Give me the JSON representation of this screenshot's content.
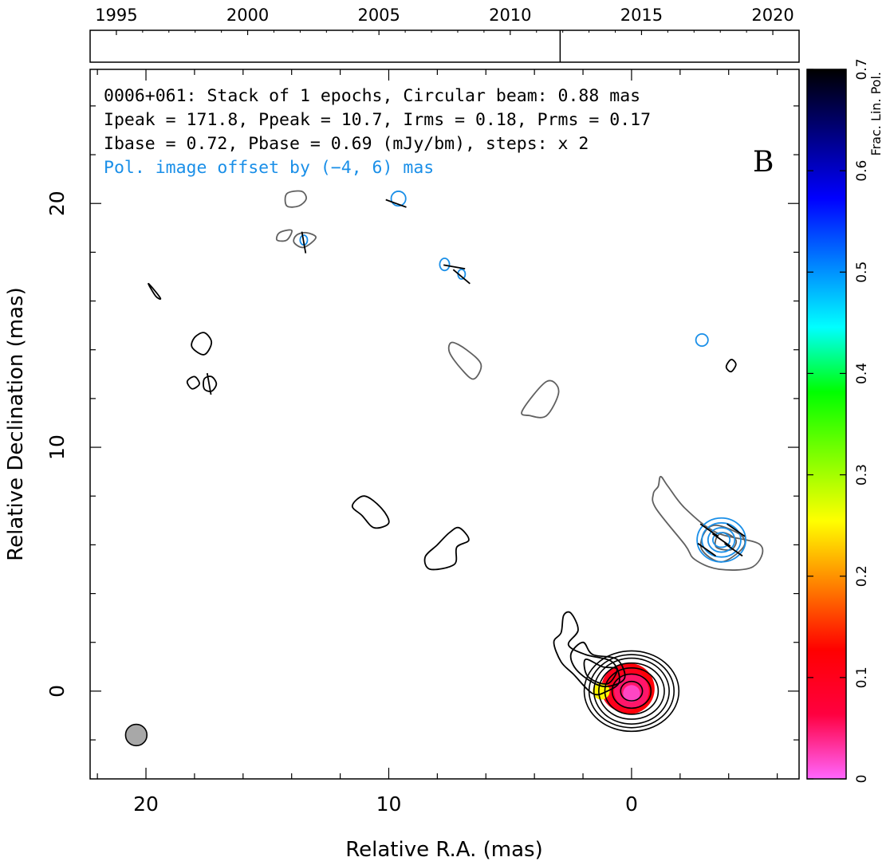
{
  "chart_data": {
    "type": "contour",
    "info_lines": [
      "0006+061: Stack of 1 epochs, Circular beam: 0.88 mas",
      "Ipeak = 171.8, Ppeak = 10.7, Irms = 0.18, Prms = 0.17",
      "Ibase = 0.72, Pbase = 0.69 (mJy/bm), steps: x 2"
    ],
    "offset_note": "Pol. image offset by (−4, 6) mas",
    "panel_letter": "B",
    "xlabel": "Relative R.A. (mas)",
    "ylabel": "Relative Declination (mas)",
    "xlim": [
      22.3,
      -6.9
    ],
    "ylim": [
      -3.6,
      25.5
    ],
    "x_ticks": [
      "20",
      "10",
      "0"
    ],
    "x_tick_values": [
      20,
      10,
      0
    ],
    "y_ticks": [
      "0",
      "10",
      "20"
    ],
    "y_tick_values": [
      0,
      10,
      20
    ],
    "x_minor_step": 2,
    "y_minor_step": 2,
    "timeline": {
      "range": [
        1994.0,
        2021.0
      ],
      "ticks": [
        "1995",
        "2000",
        "2005",
        "2010",
        "2015",
        "2020"
      ],
      "tick_values": [
        1995,
        2000,
        2005,
        2010,
        2015,
        2020
      ],
      "epochs": [
        2011.9
      ]
    },
    "colorbar": {
      "title": "Frac. Lin. Pol.",
      "range": [
        0,
        0.7
      ],
      "ticks": [
        "0",
        "0.1",
        "0.2",
        "0.3",
        "0.4",
        "0.5",
        "0.6",
        "0.7"
      ],
      "tick_values": [
        0,
        0.1,
        0.2,
        0.3,
        0.4,
        0.5,
        0.6,
        0.7
      ],
      "colormap": [
        "#ff66ff",
        "#ff0040",
        "#ff0000",
        "#ff8000",
        "#ffff00",
        "#80ff00",
        "#00ff00",
        "#00ffff",
        "#0080ff",
        "#0000ff",
        "#000080",
        "#000000"
      ]
    },
    "beam": {
      "ra": 20.4,
      "dec": -1.8,
      "diameter_mas": 0.88
    },
    "colors": {
      "core_contours": "#000000",
      "shifted_stokes_i": "#606060",
      "polarization": "#1a8fe8",
      "evpa": "#000000"
    },
    "core": {
      "ra": 0.0,
      "dec": 0.0,
      "contours": [
        {
          "rx": 0.45,
          "ry": 0.4
        },
        {
          "rx": 0.8,
          "ry": 0.7
        },
        {
          "rx": 1.1,
          "ry": 0.95
        },
        {
          "rx": 1.35,
          "ry": 1.15
        },
        {
          "rx": 1.55,
          "ry": 1.35
        },
        {
          "rx": 1.75,
          "ry": 1.5
        },
        {
          "rx": 1.95,
          "ry": 1.65
        }
      ],
      "fpol_fill": [
        {
          "ra": 0.1,
          "dec": 0.1,
          "r": 1.05,
          "value": 0.12
        },
        {
          "ra": 0.3,
          "dec": 0.1,
          "r": 0.95,
          "value": 0.1
        },
        {
          "ra": 0.0,
          "dec": 0.0,
          "r": 0.72,
          "value": 0.05
        },
        {
          "ra": 0.0,
          "dec": -0.1,
          "r": 0.35,
          "value": 0.02
        },
        {
          "ra": 1.25,
          "dec": 0.0,
          "r": 0.35,
          "value": 0.25
        }
      ]
    },
    "stokes_i_contours": [
      {
        "color": "core",
        "points": [
          [
            2.8,
            3.1
          ],
          [
            2.5,
            3.2
          ],
          [
            2.2,
            2.5
          ],
          [
            2.6,
            1.9
          ],
          [
            1.9,
            1.5
          ],
          [
            0.8,
            1.2
          ],
          [
            0.5,
            0.4
          ],
          [
            1.0,
            0.0
          ],
          [
            1.6,
            -0.1
          ],
          [
            2.4,
            0.7
          ],
          [
            2.9,
            1.2
          ],
          [
            3.2,
            2.0
          ],
          [
            2.9,
            2.4
          ]
        ]
      },
      {
        "color": "core",
        "points": [
          [
            2.0,
            2.0
          ],
          [
            1.6,
            1.5
          ],
          [
            0.6,
            1.3
          ],
          [
            0.3,
            0.5
          ],
          [
            1.2,
            0.2
          ],
          [
            2.2,
            0.8
          ],
          [
            2.5,
            1.5
          ]
        ]
      },
      {
        "color": "core",
        "points": [
          [
            1.9,
            1.3
          ],
          [
            1.2,
            1.0
          ],
          [
            0.6,
            0.9
          ],
          [
            1.0,
            0.3
          ],
          [
            1.8,
            0.6
          ]
        ]
      },
      {
        "color": "core",
        "points": [
          [
            8.0,
            6.0
          ],
          [
            7.5,
            6.5
          ],
          [
            7.1,
            6.7
          ],
          [
            6.7,
            6.2
          ],
          [
            7.2,
            5.9
          ],
          [
            7.3,
            5.2
          ],
          [
            8.3,
            5.0
          ],
          [
            8.5,
            5.5
          ]
        ]
      },
      {
        "color": "core",
        "points": [
          [
            11.5,
            7.6
          ],
          [
            11.0,
            8.0
          ],
          [
            10.3,
            7.5
          ],
          [
            10.0,
            6.9
          ],
          [
            10.6,
            6.7
          ],
          [
            11.1,
            7.2
          ]
        ]
      },
      {
        "color": "core",
        "points": [
          [
            18.0,
            14.5
          ],
          [
            17.6,
            14.7
          ],
          [
            17.3,
            14.3
          ],
          [
            17.6,
            13.8
          ],
          [
            18.1,
            14.1
          ]
        ]
      },
      {
        "color": "core",
        "points": [
          [
            18.3,
            12.7
          ],
          [
            18.0,
            12.9
          ],
          [
            17.8,
            12.6
          ],
          [
            18.1,
            12.4
          ]
        ]
      },
      {
        "color": "core",
        "points": [
          [
            17.6,
            12.8
          ],
          [
            17.3,
            12.9
          ],
          [
            17.1,
            12.6
          ],
          [
            17.3,
            12.3
          ],
          [
            17.6,
            12.4
          ]
        ]
      },
      {
        "color": "core",
        "points": [
          [
            19.9,
            16.7
          ],
          [
            19.6,
            16.2
          ],
          [
            19.4,
            16.1
          ],
          [
            19.7,
            16.5
          ]
        ]
      },
      {
        "color": "core",
        "points": [
          [
            -4.1,
            13.6
          ],
          [
            -4.3,
            13.4
          ],
          [
            -4.1,
            13.1
          ],
          [
            -3.9,
            13.3
          ]
        ]
      },
      {
        "color": "shifted",
        "points": [
          [
            14.2,
            20.4
          ],
          [
            13.6,
            20.5
          ],
          [
            13.4,
            20.2
          ],
          [
            13.7,
            19.9
          ],
          [
            14.2,
            19.9
          ]
        ]
      },
      {
        "color": "shifted",
        "points": [
          [
            14.5,
            18.8
          ],
          [
            14.0,
            18.9
          ],
          [
            14.2,
            18.5
          ],
          [
            14.6,
            18.5
          ]
        ]
      },
      {
        "color": "shifted",
        "points": [
          [
            13.8,
            18.7
          ],
          [
            13.4,
            18.8
          ],
          [
            13.0,
            18.6
          ],
          [
            13.5,
            18.2
          ],
          [
            13.9,
            18.4
          ]
        ]
      },
      {
        "color": "shifted",
        "points": [
          [
            7.4,
            14.3
          ],
          [
            6.8,
            14.0
          ],
          [
            6.2,
            13.4
          ],
          [
            6.5,
            12.8
          ],
          [
            7.0,
            13.2
          ],
          [
            7.5,
            13.9
          ]
        ]
      },
      {
        "color": "shifted",
        "points": [
          [
            4.5,
            11.5
          ],
          [
            3.5,
            12.7
          ],
          [
            3.0,
            12.3
          ],
          [
            3.5,
            11.3
          ],
          [
            4.2,
            11.3
          ]
        ]
      },
      {
        "color": "shifted",
        "points": [
          [
            -1.2,
            8.8
          ],
          [
            -1.5,
            8.4
          ],
          [
            -2.2,
            7.5
          ],
          [
            -3.5,
            6.5
          ],
          [
            -5.3,
            6.0
          ],
          [
            -5.0,
            5.1
          ],
          [
            -3.6,
            5.0
          ],
          [
            -2.6,
            5.4
          ],
          [
            -2.2,
            6.0
          ],
          [
            -1.0,
            7.5
          ],
          [
            -0.9,
            8.1
          ],
          [
            -1.1,
            8.4
          ]
        ]
      },
      {
        "color": "shifted",
        "points": [
          [
            -3.5,
            6.8
          ],
          [
            -4.5,
            6.4
          ],
          [
            -4.6,
            5.9
          ],
          [
            -3.7,
            5.3
          ],
          [
            -2.9,
            5.8
          ],
          [
            -3.0,
            6.5
          ]
        ]
      },
      {
        "color": "shifted",
        "points": [
          [
            -3.8,
            6.5
          ],
          [
            -4.3,
            6.2
          ],
          [
            -4.1,
            5.8
          ],
          [
            -3.5,
            5.9
          ],
          [
            -3.5,
            6.3
          ]
        ]
      }
    ],
    "polarization_contours": [
      {
        "ra": 9.6,
        "dec": 20.2,
        "rx": 0.3,
        "ry": 0.3
      },
      {
        "ra": 13.5,
        "dec": 18.5,
        "rx": 0.15,
        "ry": 0.2
      },
      {
        "ra": 7.7,
        "dec": 17.5,
        "rx": 0.2,
        "ry": 0.25
      },
      {
        "ra": 7.0,
        "dec": 17.1,
        "rx": 0.15,
        "ry": 0.2
      },
      {
        "ra": -2.9,
        "dec": 14.4,
        "rx": 0.25,
        "ry": 0.25
      },
      {
        "ra": -3.7,
        "dec": 6.2,
        "rx": 1.0,
        "ry": 0.9
      },
      {
        "ra": -3.7,
        "dec": 6.2,
        "rx": 0.8,
        "ry": 0.7
      },
      {
        "ra": -3.7,
        "dec": 6.2,
        "rx": 0.55,
        "ry": 0.5
      },
      {
        "ra": -3.7,
        "dec": 6.2,
        "rx": 0.35,
        "ry": 0.3
      }
    ],
    "evpa_ticks": [
      {
        "ra": -3.2,
        "dec": 6.6,
        "angle": 35
      },
      {
        "ra": -3.7,
        "dec": 6.2,
        "angle": 35
      },
      {
        "ra": -4.2,
        "dec": 5.8,
        "angle": 35
      },
      {
        "ra": -3.1,
        "dec": 5.8,
        "angle": 35
      },
      {
        "ra": -4.3,
        "dec": 6.6,
        "angle": 35
      },
      {
        "ra": 9.7,
        "dec": 20.0,
        "angle": 20
      },
      {
        "ra": 13.5,
        "dec": 18.4,
        "angle": 80
      },
      {
        "ra": 7.3,
        "dec": 17.4,
        "angle": 10
      },
      {
        "ra": 7.0,
        "dec": 17.0,
        "angle": 40
      },
      {
        "ra": 17.4,
        "dec": 12.6,
        "angle": 80
      }
    ]
  }
}
